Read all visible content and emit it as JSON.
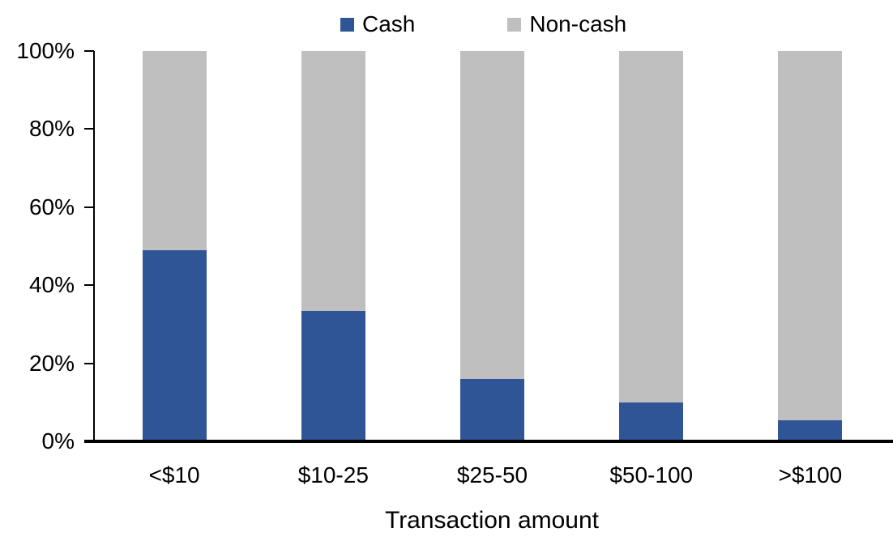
{
  "chart_data": {
    "type": "bar",
    "stacked": true,
    "orientation": "vertical",
    "title": "",
    "xlabel": "Transaction amount",
    "ylabel": "",
    "categories": [
      "<$10",
      "$10-25",
      "$25-50",
      "$50-100",
      ">$100"
    ],
    "series": [
      {
        "name": "Cash",
        "color": "#2F5597",
        "values": [
          49,
          33.5,
          16,
          10,
          5.5
        ]
      },
      {
        "name": "Non-cash",
        "color": "#BFBFBF",
        "values": [
          51,
          66.5,
          84,
          90,
          94.5
        ]
      }
    ],
    "ylim": [
      0,
      100
    ],
    "ytick_labels": [
      "0%",
      "20%",
      "40%",
      "60%",
      "80%",
      "100%"
    ],
    "ytick_values": [
      0,
      20,
      40,
      60,
      80,
      100
    ],
    "legend_position": "top",
    "grid": false,
    "axis_color": "#000000",
    "background_color": "#FFFFFF"
  }
}
